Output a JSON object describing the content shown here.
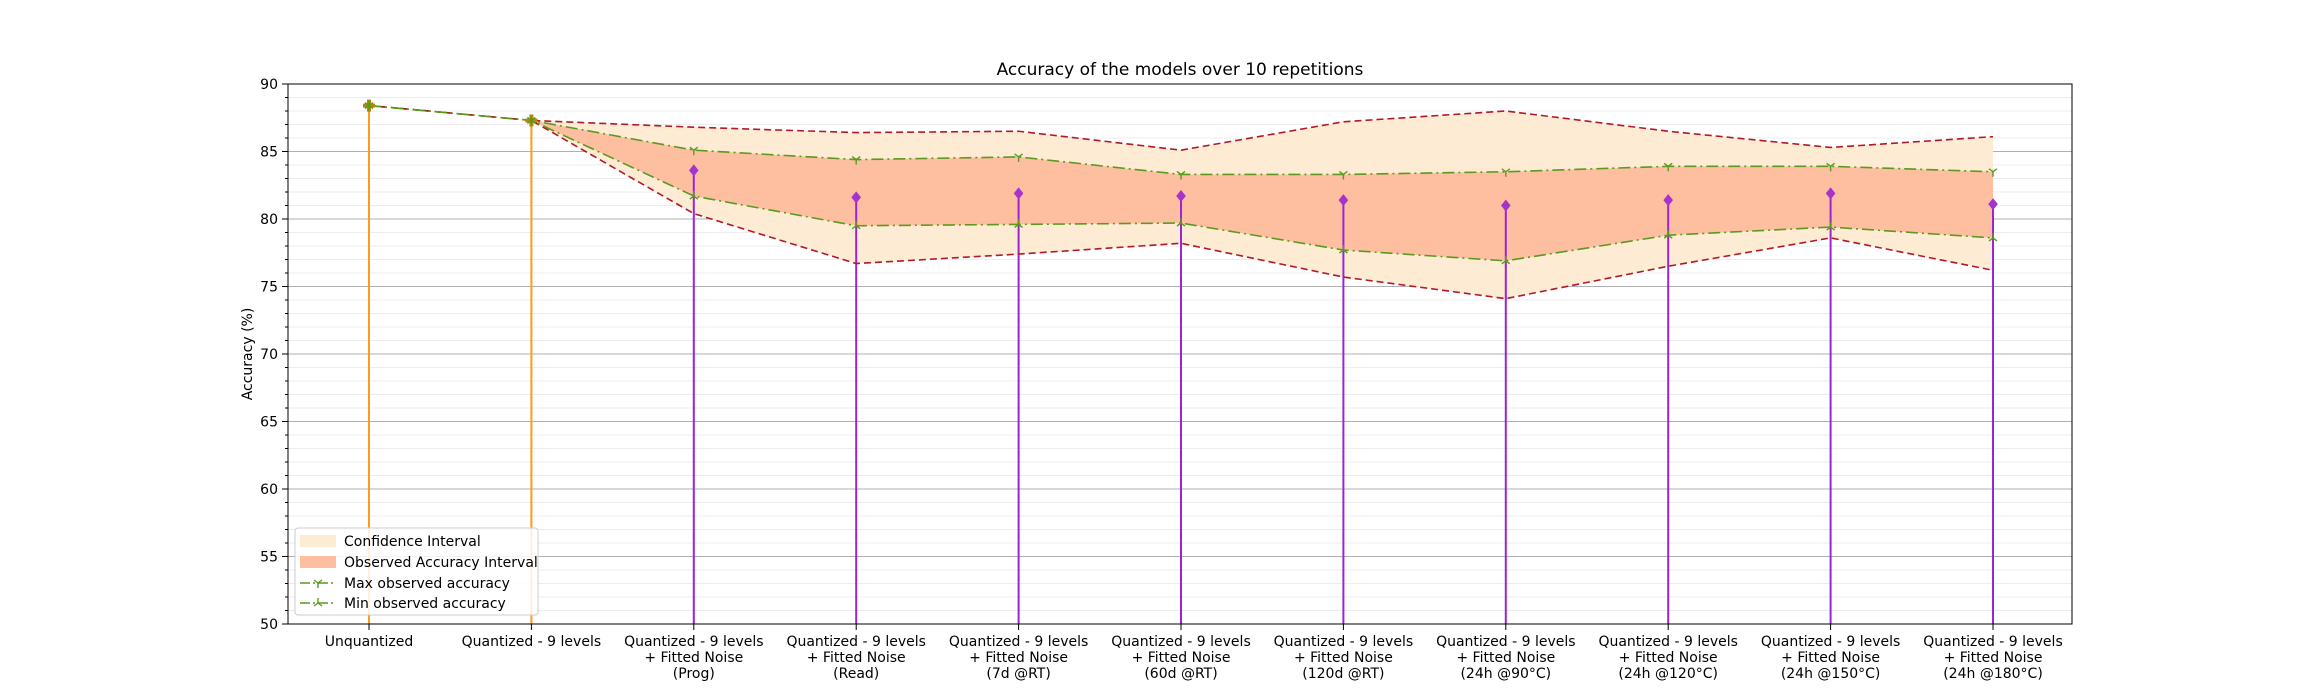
{
  "chart_data": {
    "type": "line",
    "title": "Accuracy of the models over 10 repetitions",
    "xlabel": "",
    "ylabel": "Accuracy (%)",
    "ylim": [
      50,
      90
    ],
    "yticks": [
      50,
      55,
      60,
      65,
      70,
      75,
      80,
      85,
      90
    ],
    "minor_grid_step": 1,
    "grid": true,
    "legend_position": "lower-left",
    "categories": [
      "Unquantized",
      "Quantized - 9 levels",
      "Quantized - 9 levels\n+ Fitted Noise\n(Prog)",
      "Quantized - 9 levels\n+ Fitted Noise\n(Read)",
      "Quantized - 9 levels\n+ Fitted Noise\n(7d @RT)",
      "Quantized - 9 levels\n+ Fitted Noise\n(60d @RT)",
      "Quantized - 9 levels\n+ Fitted Noise\n(120d @RT)",
      "Quantized - 9 levels\n+ Fitted Noise\n(24h @90°C)",
      "Quantized - 9 levels\n+ Fitted Noise\n(24h @120°C)",
      "Quantized - 9 levels\n+ Fitted Noise\n(24h @150°C)",
      "Quantized - 9 levels\n+ Fitted Noise\n(24h @180°C)"
    ],
    "mean_accuracy": [
      88.4,
      87.3,
      83.6,
      81.6,
      81.9,
      81.7,
      81.4,
      81.0,
      81.4,
      81.9,
      81.1
    ],
    "confidence_interval": {
      "upper": [
        88.4,
        87.3,
        86.8,
        86.4,
        86.5,
        85.1,
        87.2,
        88.0,
        86.5,
        85.3,
        86.1
      ],
      "lower": [
        88.4,
        87.3,
        80.4,
        76.7,
        77.4,
        78.2,
        75.7,
        74.1,
        76.5,
        78.6,
        76.2
      ]
    },
    "series": [
      {
        "name": "Max observed accuracy",
        "values": [
          88.4,
          87.3,
          85.1,
          84.4,
          84.6,
          83.3,
          83.3,
          83.5,
          83.9,
          83.9,
          83.5
        ]
      },
      {
        "name": "Min observed accuracy",
        "values": [
          88.4,
          87.3,
          81.7,
          79.5,
          79.6,
          79.7,
          77.7,
          76.9,
          78.8,
          79.4,
          78.6
        ]
      }
    ],
    "legend": [
      "Confidence Interval",
      "Observed Accuracy Interval",
      "Max observed accuracy",
      "Min observed accuracy"
    ],
    "colors": {
      "confidence_fill": "#fdebd3",
      "observed_fill": "#fdbf9f",
      "ci_line": "#b2182b",
      "minmax_line": "#5a9a1e",
      "stem_baseline": "#ff9a1a",
      "stem_marker_baseline": "#b8860b",
      "stem_noise": "#9a24d6",
      "marker_noise": "#a533cc"
    }
  }
}
